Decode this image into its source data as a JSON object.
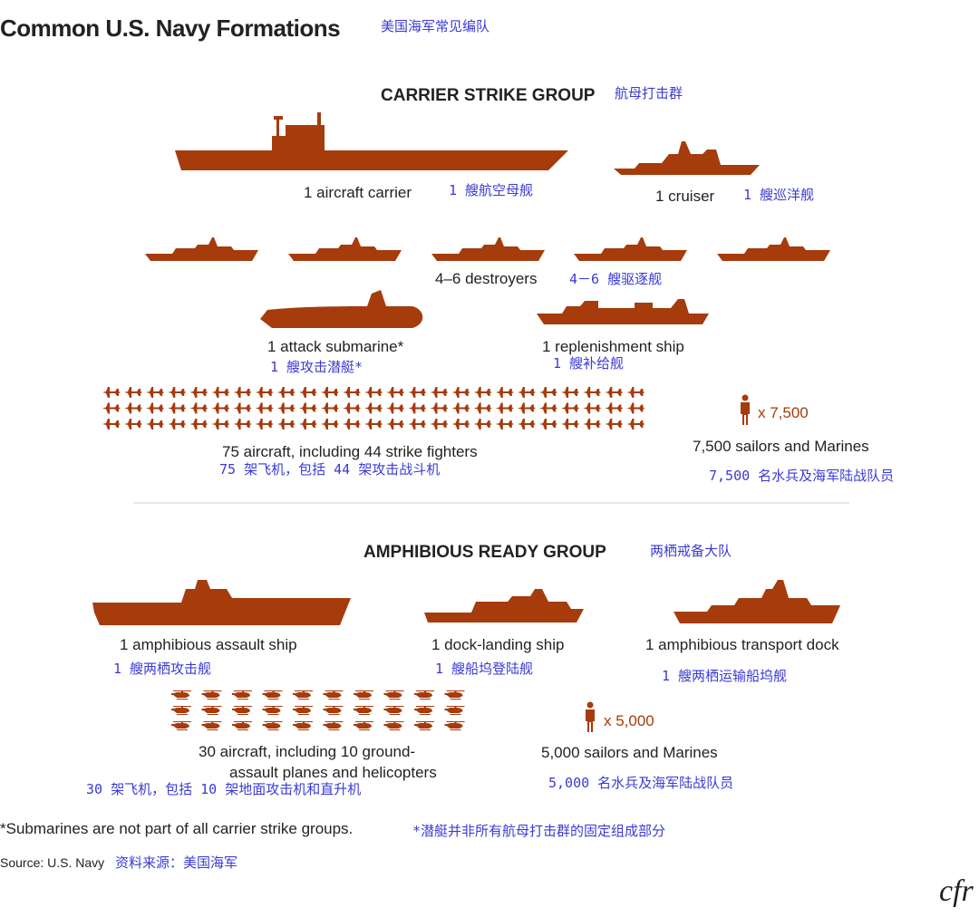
{
  "title": "Common U.S. Navy Formations",
  "title_cn": "美国海军常见编队",
  "sections": [
    {
      "heading": "CARRIER STRIKE GROUP",
      "heading_cn": "航母打击群",
      "items": [
        {
          "label": "1 aircraft carrier",
          "label_cn": "1 艘航空母舰"
        },
        {
          "label": "1 cruiser",
          "label_cn": "1 艘巡洋舰"
        },
        {
          "label": "4–6 destroyers",
          "label_cn": "4－6 艘驱逐舰"
        },
        {
          "label": "1 attack submarine*",
          "label_cn": "1 艘攻击潜艇*"
        },
        {
          "label": "1 replenishment ship",
          "label_cn": "1 艘补给舰"
        },
        {
          "label": [
            "75 aircraft, including 44 strike fighters"
          ],
          "label_cn": "75 架飞机，包括 44 架攻击战斗机"
        }
      ],
      "personnel": {
        "count": "x 7,500",
        "label": "7,500 sailors and Marines",
        "label_cn": "7,500 名水兵及海军陆战队员"
      }
    },
    {
      "heading": "AMPHIBIOUS READY GROUP",
      "heading_cn": "两栖戒备大队",
      "items": [
        {
          "label": "1 amphibious assault ship",
          "label_cn": "1 艘两栖攻击舰"
        },
        {
          "label": "1 dock-landing ship",
          "label_cn": "1 艘船坞登陆舰"
        },
        {
          "label": "1 amphibious transport dock",
          "label_cn": "1 艘两栖运输船坞舰"
        },
        {
          "label": [
            "30 aircraft, including 10 ground-",
            "assault planes and helicopters"
          ],
          "label_cn": "30 架飞机，包括 10 架地面攻击机和直升机"
        }
      ],
      "personnel": {
        "count": "x 5,000",
        "label": "5,000 sailors and Marines",
        "label_cn": "5,000 名水兵及海军陆战队员"
      }
    }
  ],
  "footnote": "*Submarines are not part of all carrier strike groups.",
  "footnote_cn": "*潜艇并非所有航母打击群的固定组成部分",
  "source": "Source: U.S. Navy",
  "source_cn": "资料来源：美国海军",
  "logo": "cfr"
}
